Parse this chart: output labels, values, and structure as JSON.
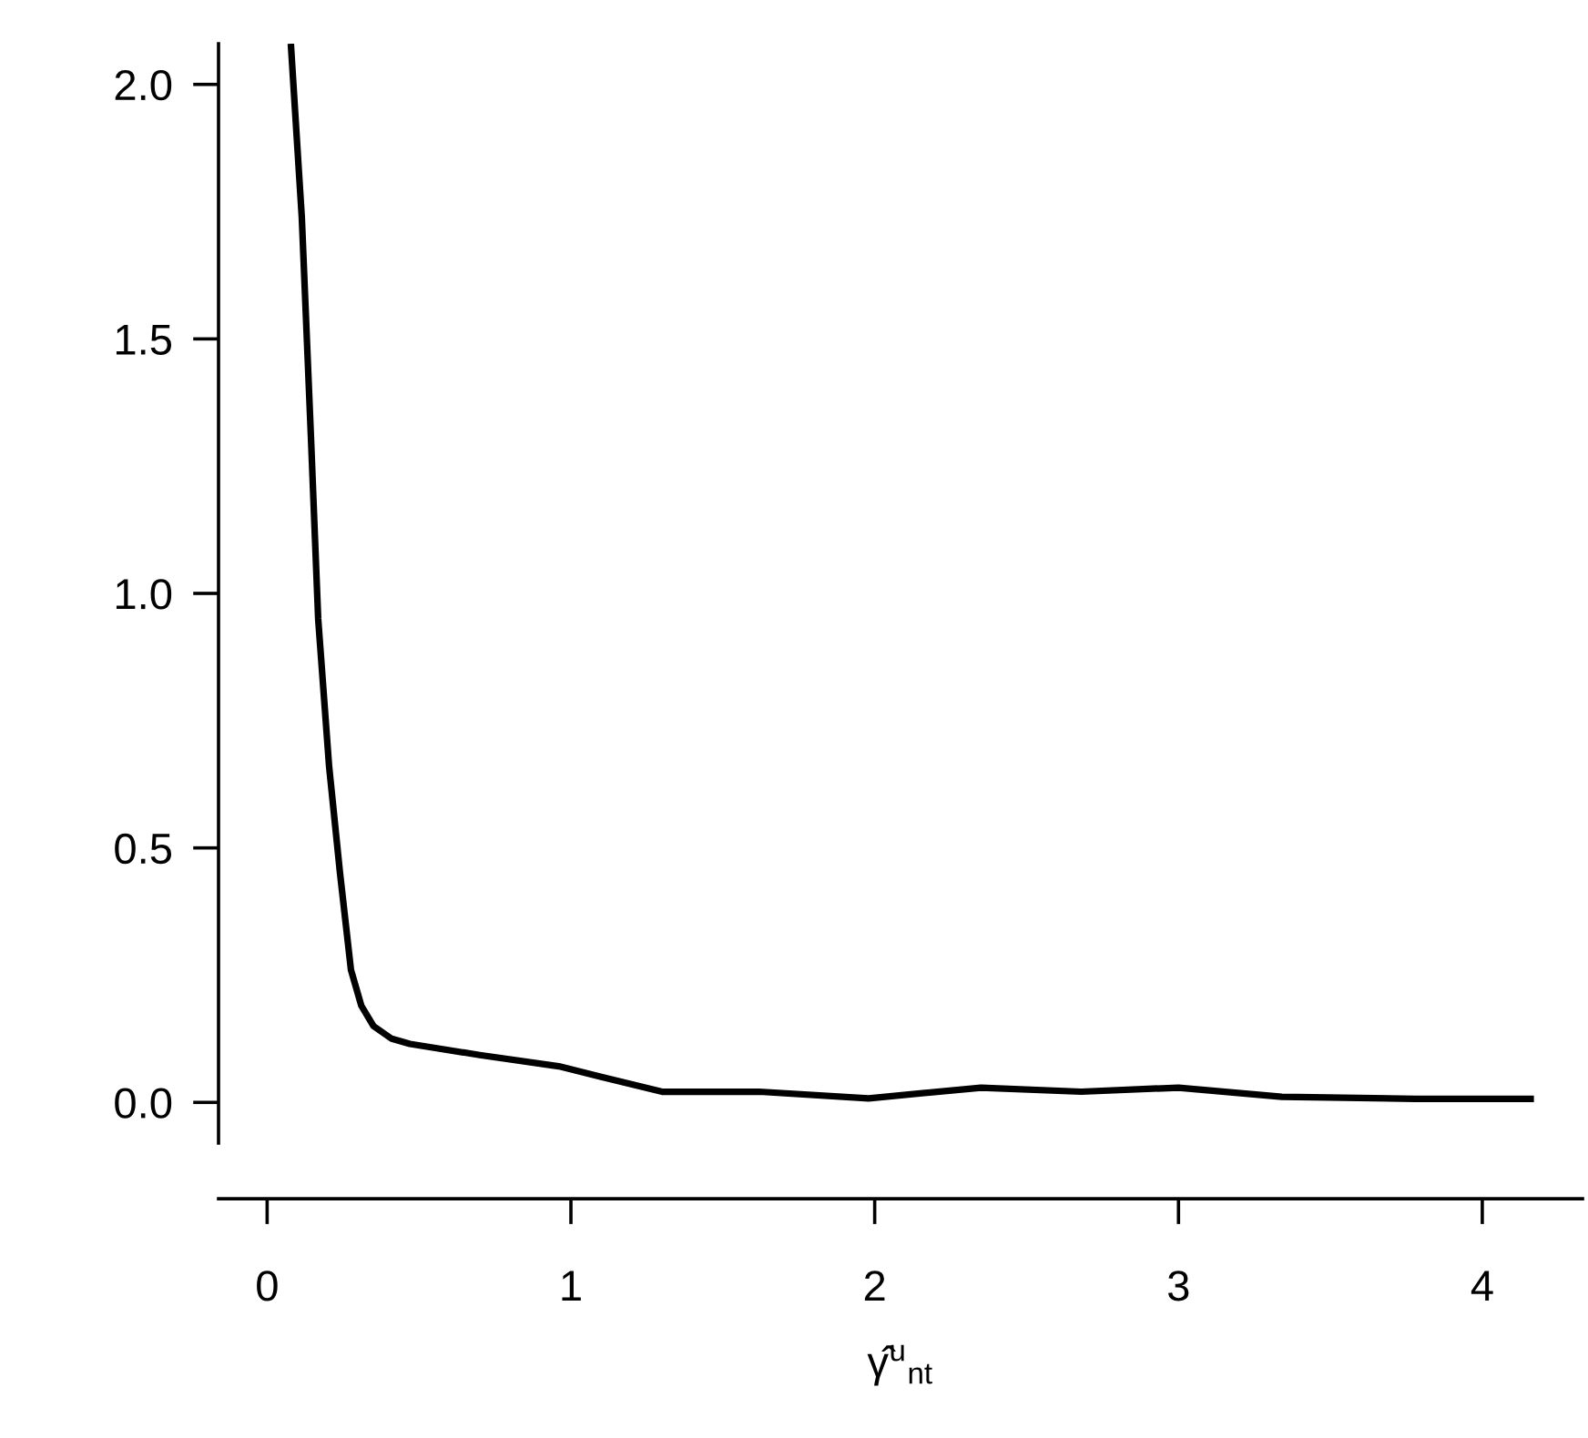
{
  "chart_data": {
    "type": "line",
    "xlabel": "γ̂$^{u}$$_{nt}$",
    "series": [
      {
        "color": "#000000",
        "x": [
          0.078,
          0.114,
          0.144,
          0.168,
          0.204,
          0.24,
          0.276,
          0.31,
          0.35,
          0.41,
          0.47,
          0.7,
          0.96,
          1.1,
          1.3,
          1.62,
          1.98,
          2.35,
          2.68,
          3.0,
          3.34,
          3.78,
          4.17
        ],
        "values": [
          2.08,
          1.74,
          1.31,
          0.95,
          0.66,
          0.45,
          0.26,
          0.19,
          0.15,
          0.125,
          0.115,
          0.093,
          0.071,
          0.05,
          0.021,
          0.021,
          0.008,
          0.029,
          0.021,
          0.029,
          0.011,
          0.007,
          0.007
        ]
      }
    ],
    "xlim": [
      -0.16,
      4.33
    ],
    "ylim": [
      -0.08,
      2.08
    ],
    "xticks": [
      0,
      1,
      2,
      3,
      4
    ],
    "yticks": [
      {
        "value": 0,
        "label": "0.0"
      },
      {
        "value": 0.5,
        "label": "0.5"
      },
      {
        "value": 1,
        "label": "1.0"
      },
      {
        "value": 1.5,
        "label": "1.5"
      },
      {
        "value": 2,
        "label": "2.0"
      }
    ],
    "grid": false,
    "legend": false,
    "line_style": "solid",
    "marker": "none"
  }
}
